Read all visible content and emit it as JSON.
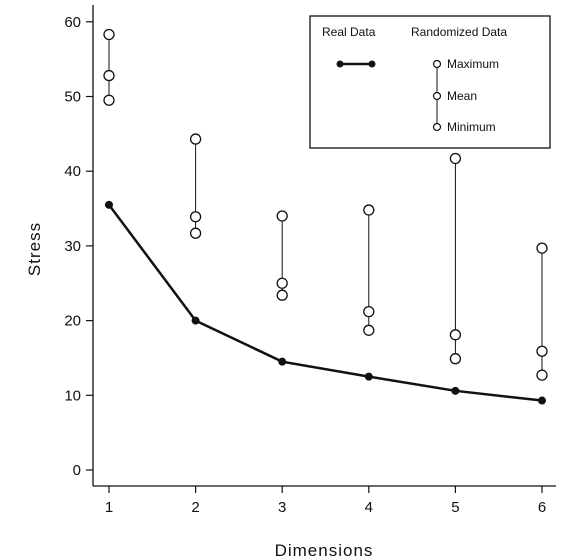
{
  "chart_data": {
    "type": "line",
    "xlabel": "Dimensions",
    "ylabel": "Stress",
    "xlim": [
      1,
      6
    ],
    "ylim": [
      0,
      60
    ],
    "x_ticks": [
      1,
      2,
      3,
      4,
      5,
      6
    ],
    "y_ticks": [
      0,
      10,
      20,
      30,
      40,
      50,
      60
    ],
    "grid": false,
    "legend_position": "top-right",
    "legend": {
      "real_header": "Real Data",
      "random_header": "Randomized Data",
      "items": [
        "Maximum",
        "Mean",
        "Minimum"
      ]
    },
    "real_series": {
      "name": "Real Data",
      "x": [
        1,
        2,
        3,
        4,
        5,
        6
      ],
      "y": [
        35.5,
        20.0,
        14.5,
        12.5,
        10.6,
        9.3
      ]
    },
    "randomized_series": {
      "name": "Randomized Data",
      "x": [
        1,
        2,
        3,
        4,
        5,
        6
      ],
      "maximum": [
        58.3,
        44.3,
        34.0,
        34.8,
        41.7,
        29.7
      ],
      "mean": [
        52.8,
        33.9,
        25.0,
        21.2,
        18.1,
        15.9
      ],
      "minimum": [
        49.5,
        31.7,
        23.4,
        18.7,
        14.9,
        12.7
      ]
    },
    "colors": {
      "line": "#111111",
      "marker_fill_real": "#111111",
      "marker_fill_random": "#ffffff",
      "background": "#ffffff"
    }
  }
}
